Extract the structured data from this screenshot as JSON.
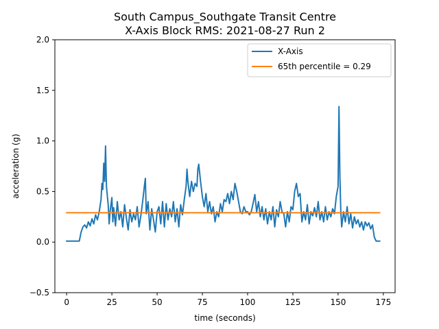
{
  "chart_data": {
    "type": "line",
    "title": "South Campus_Southgate Transit Centre",
    "subtitle": "X-Axis Block RMS: 2021-08-27 Run 2",
    "xlabel": "time (seconds)",
    "ylabel": "acceleration (g)",
    "xlim": [
      -6.5,
      181.5
    ],
    "ylim": [
      -0.5,
      2.0
    ],
    "x_ticks": [
      0,
      25,
      50,
      75,
      100,
      125,
      150,
      175
    ],
    "y_ticks": [
      -0.5,
      0.0,
      0.5,
      1.0,
      1.5,
      2.0
    ],
    "x_tick_labels": [
      "0",
      "25",
      "50",
      "75",
      "100",
      "125",
      "150",
      "175"
    ],
    "y_tick_labels": [
      "−0.5",
      "0.0",
      "0.5",
      "1.0",
      "1.5",
      "2.0"
    ],
    "grid": false,
    "legend_position": "top-right",
    "series": [
      {
        "name": "X-Axis",
        "color": "#1f77b4",
        "points": [
          [
            0,
            0.01
          ],
          [
            5,
            0.01
          ],
          [
            7,
            0.01
          ],
          [
            8,
            0.1
          ],
          [
            9,
            0.15
          ],
          [
            10,
            0.17
          ],
          [
            11,
            0.14
          ],
          [
            12,
            0.2
          ],
          [
            13,
            0.16
          ],
          [
            14,
            0.23
          ],
          [
            15,
            0.18
          ],
          [
            16,
            0.27
          ],
          [
            17,
            0.22
          ],
          [
            18,
            0.3
          ],
          [
            19,
            0.42
          ],
          [
            19.5,
            0.58
          ],
          [
            20,
            0.52
          ],
          [
            20.5,
            0.78
          ],
          [
            21,
            0.6
          ],
          [
            21.5,
            0.95
          ],
          [
            22,
            0.55
          ],
          [
            23,
            0.36
          ],
          [
            23.5,
            0.18
          ],
          [
            24,
            0.3
          ],
          [
            25,
            0.44
          ],
          [
            25.5,
            0.2
          ],
          [
            26,
            0.34
          ],
          [
            27,
            0.16
          ],
          [
            28,
            0.4
          ],
          [
            29,
            0.22
          ],
          [
            30,
            0.3
          ],
          [
            31,
            0.15
          ],
          [
            32,
            0.37
          ],
          [
            33,
            0.24
          ],
          [
            34,
            0.12
          ],
          [
            35,
            0.32
          ],
          [
            36,
            0.2
          ],
          [
            37,
            0.28
          ],
          [
            38,
            0.22
          ],
          [
            39,
            0.35
          ],
          [
            40,
            0.15
          ],
          [
            41,
            0.26
          ],
          [
            42,
            0.4
          ],
          [
            43,
            0.56
          ],
          [
            43.5,
            0.63
          ],
          [
            44,
            0.28
          ],
          [
            45,
            0.4
          ],
          [
            46,
            0.12
          ],
          [
            47,
            0.33
          ],
          [
            48,
            0.22
          ],
          [
            49,
            0.1
          ],
          [
            50,
            0.3
          ],
          [
            51,
            0.35
          ],
          [
            52,
            0.18
          ],
          [
            53,
            0.4
          ],
          [
            54,
            0.15
          ],
          [
            55,
            0.38
          ],
          [
            56,
            0.22
          ],
          [
            57,
            0.33
          ],
          [
            58,
            0.25
          ],
          [
            59,
            0.4
          ],
          [
            60,
            0.2
          ],
          [
            61,
            0.33
          ],
          [
            62,
            0.15
          ],
          [
            63,
            0.37
          ],
          [
            64,
            0.27
          ],
          [
            65,
            0.42
          ],
          [
            66,
            0.55
          ],
          [
            66.5,
            0.72
          ],
          [
            67,
            0.6
          ],
          [
            68,
            0.45
          ],
          [
            69,
            0.6
          ],
          [
            70,
            0.5
          ],
          [
            71,
            0.58
          ],
          [
            72,
            0.55
          ],
          [
            72.5,
            0.72
          ],
          [
            73,
            0.77
          ],
          [
            74,
            0.6
          ],
          [
            75,
            0.45
          ],
          [
            76,
            0.35
          ],
          [
            77,
            0.48
          ],
          [
            78,
            0.3
          ],
          [
            79,
            0.4
          ],
          [
            80,
            0.28
          ],
          [
            81,
            0.35
          ],
          [
            82,
            0.2
          ],
          [
            83,
            0.3
          ],
          [
            84,
            0.25
          ],
          [
            85,
            0.38
          ],
          [
            86,
            0.3
          ],
          [
            87,
            0.42
          ],
          [
            88,
            0.4
          ],
          [
            89,
            0.48
          ],
          [
            90,
            0.38
          ],
          [
            91,
            0.5
          ],
          [
            92,
            0.42
          ],
          [
            93,
            0.58
          ],
          [
            94,
            0.5
          ],
          [
            95,
            0.4
          ],
          [
            96,
            0.3
          ],
          [
            97,
            0.28
          ],
          [
            98,
            0.35
          ],
          [
            99,
            0.3
          ],
          [
            100,
            0.3
          ],
          [
            101,
            0.27
          ],
          [
            102,
            0.3
          ],
          [
            103,
            0.38
          ],
          [
            104,
            0.47
          ],
          [
            105,
            0.3
          ],
          [
            106,
            0.4
          ],
          [
            107,
            0.25
          ],
          [
            108,
            0.35
          ],
          [
            109,
            0.22
          ],
          [
            110,
            0.33
          ],
          [
            111,
            0.18
          ],
          [
            112,
            0.3
          ],
          [
            113,
            0.22
          ],
          [
            114,
            0.35
          ],
          [
            115,
            0.15
          ],
          [
            116,
            0.32
          ],
          [
            117,
            0.25
          ],
          [
            118,
            0.4
          ],
          [
            119,
            0.3
          ],
          [
            120,
            0.28
          ],
          [
            121,
            0.15
          ],
          [
            122,
            0.3
          ],
          [
            123,
            0.2
          ],
          [
            124,
            0.35
          ],
          [
            125,
            0.32
          ],
          [
            126,
            0.5
          ],
          [
            127,
            0.58
          ],
          [
            128,
            0.45
          ],
          [
            129,
            0.48
          ],
          [
            130,
            0.2
          ],
          [
            131,
            0.3
          ],
          [
            132,
            0.22
          ],
          [
            133,
            0.37
          ],
          [
            134,
            0.18
          ],
          [
            135,
            0.3
          ],
          [
            136,
            0.26
          ],
          [
            137,
            0.34
          ],
          [
            138,
            0.25
          ],
          [
            139,
            0.4
          ],
          [
            140,
            0.22
          ],
          [
            141,
            0.3
          ],
          [
            142,
            0.2
          ],
          [
            143,
            0.35
          ],
          [
            144,
            0.22
          ],
          [
            145,
            0.3
          ],
          [
            146,
            0.25
          ],
          [
            147,
            0.33
          ],
          [
            148,
            0.28
          ],
          [
            149,
            0.45
          ],
          [
            150,
            0.55
          ],
          [
            150.5,
            1.34
          ],
          [
            151,
            0.65
          ],
          [
            151.5,
            0.3
          ],
          [
            152,
            0.15
          ],
          [
            153,
            0.3
          ],
          [
            154,
            0.2
          ],
          [
            155,
            0.35
          ],
          [
            156,
            0.18
          ],
          [
            157,
            0.28
          ],
          [
            158,
            0.14
          ],
          [
            159,
            0.25
          ],
          [
            160,
            0.18
          ],
          [
            161,
            0.22
          ],
          [
            162,
            0.15
          ],
          [
            163,
            0.2
          ],
          [
            164,
            0.12
          ],
          [
            165,
            0.2
          ],
          [
            166,
            0.16
          ],
          [
            167,
            0.19
          ],
          [
            168,
            0.13
          ],
          [
            169,
            0.17
          ],
          [
            170,
            0.05
          ],
          [
            171,
            0.01
          ],
          [
            173,
            0.01
          ]
        ]
      },
      {
        "name": "65th percentile = 0.29",
        "color": "#ff7f0e",
        "points": [
          [
            0,
            0.29
          ],
          [
            173,
            0.29
          ]
        ]
      }
    ]
  }
}
